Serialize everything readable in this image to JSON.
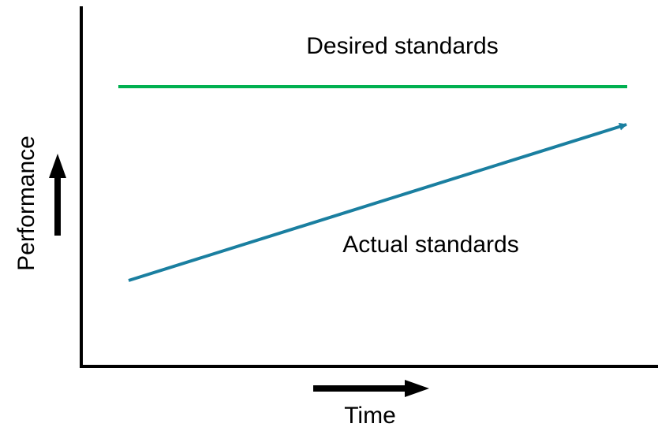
{
  "diagram": {
    "desired_label": "Desired standards",
    "actual_label": "Actual standards",
    "x_axis_label": "Time",
    "y_axis_label": "Performance"
  },
  "colors": {
    "axes": "#000000",
    "desired_line": "#00b050",
    "actual_line": "#1a7fa0",
    "text": "#000000"
  }
}
